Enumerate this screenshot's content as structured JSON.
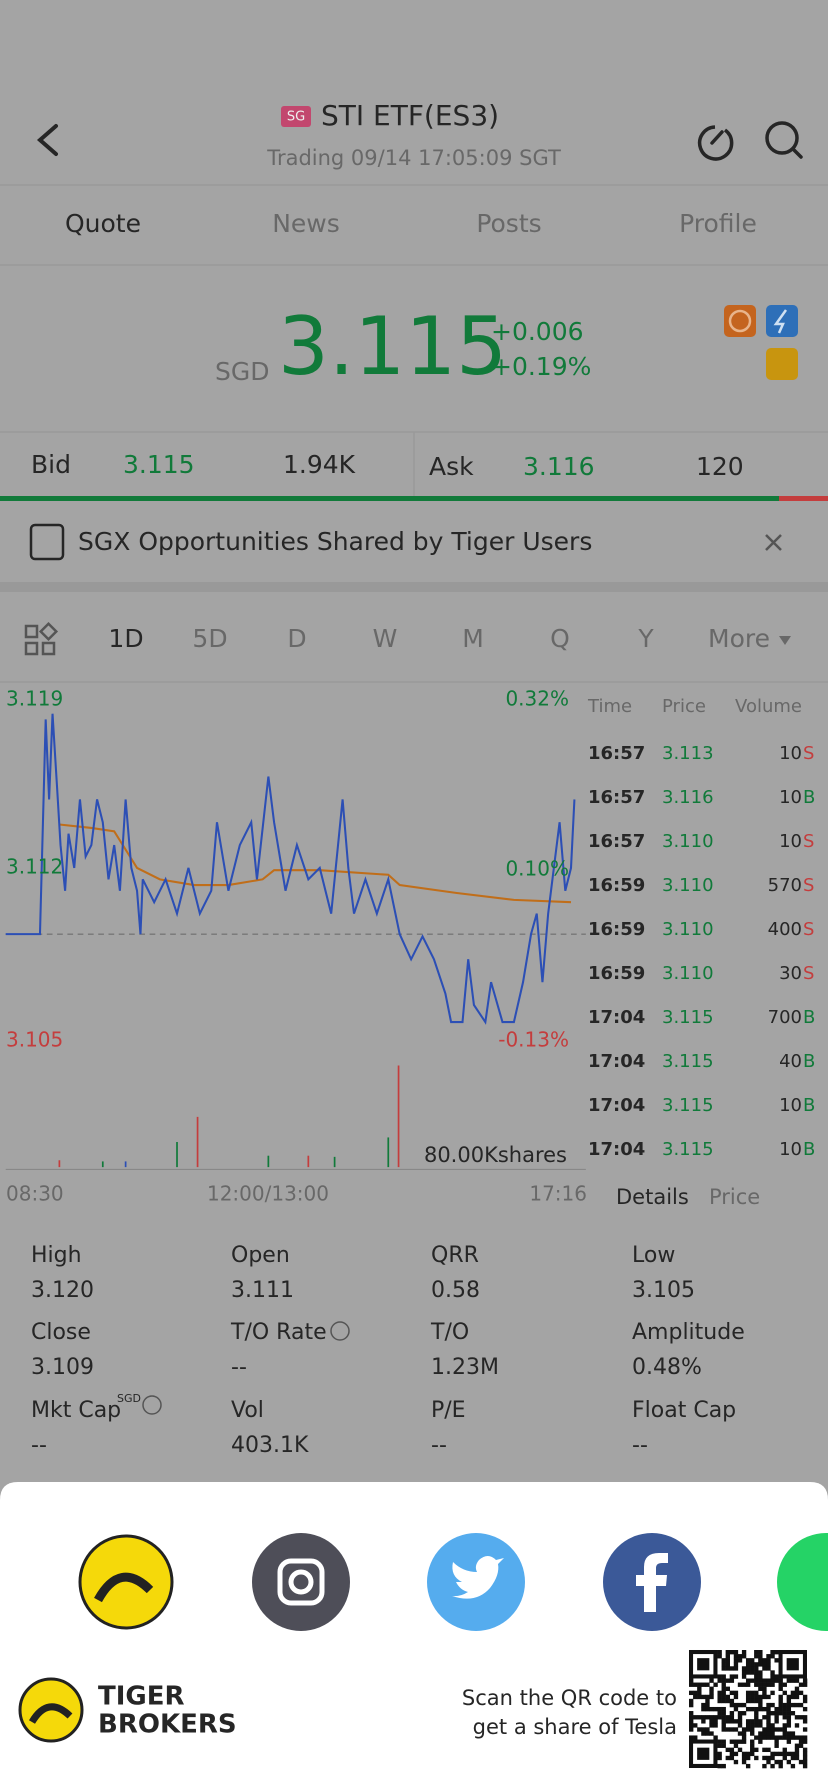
{
  "header": {
    "badge": "SG",
    "title": "STI ETF(ES3)",
    "subtitle": "Trading 09/14 17:05:09 SGT"
  },
  "tabs": [
    "Quote",
    "News",
    "Posts",
    "Profile"
  ],
  "quote": {
    "currency": "SGD",
    "price": "3.115",
    "change": "+0.006",
    "change_pct": "+0.19%"
  },
  "bid_ask": {
    "bid_label": "Bid",
    "bid_price": "3.115",
    "bid_size": "1.94K",
    "ask_label": "Ask",
    "ask_price": "3.116",
    "ask_size": "120"
  },
  "banner": {
    "text": "SGX Opportunities Shared by Tiger Users"
  },
  "periods": [
    "1D",
    "5D",
    "D",
    "W",
    "M",
    "Q",
    "Y",
    "More"
  ],
  "chart": {
    "price_labels": [
      "3.119",
      "3.112",
      "3.105"
    ],
    "pct_labels": [
      "0.32%",
      "0.10%",
      "-0.13%"
    ],
    "volume_label": "80.00Kshares",
    "time_labels": [
      "08:30",
      "12:00/13:00",
      "17:16"
    ]
  },
  "trades": {
    "columns": [
      "Time",
      "Price",
      "Volume"
    ],
    "rows": [
      [
        "16:57",
        "3.113",
        "10",
        "S"
      ],
      [
        "16:57",
        "3.116",
        "10",
        "B"
      ],
      [
        "16:57",
        "3.110",
        "10",
        "S"
      ],
      [
        "16:59",
        "3.110",
        "570",
        "S"
      ],
      [
        "16:59",
        "3.110",
        "400",
        "S"
      ],
      [
        "16:59",
        "3.110",
        "30",
        "S"
      ],
      [
        "17:04",
        "3.115",
        "700",
        "B"
      ],
      [
        "17:04",
        "3.115",
        "40",
        "B"
      ],
      [
        "17:04",
        "3.115",
        "10",
        "B"
      ],
      [
        "17:04",
        "3.115",
        "10",
        "B"
      ]
    ]
  },
  "detail_tabs": [
    "Details",
    "Price"
  ],
  "stats": [
    {
      "label": "High",
      "value": "3.120"
    },
    {
      "label": "Open",
      "value": "3.111"
    },
    {
      "label": "QRR",
      "value": "0.58"
    },
    {
      "label": "Low",
      "value": "3.105"
    },
    {
      "label": "Close",
      "value": "3.109"
    },
    {
      "label": "T/O Rate",
      "value": "--"
    },
    {
      "label": "T/O",
      "value": "1.23M"
    },
    {
      "label": "Amplitude",
      "value": "0.48%"
    },
    {
      "label": "Mkt Cap",
      "unit": "SGD",
      "value": "--"
    },
    {
      "label": "Vol",
      "value": "403.1K"
    },
    {
      "label": "P/E",
      "value": "--"
    },
    {
      "label": "Float Cap",
      "value": "--"
    }
  ],
  "footer": {
    "brand": [
      "TIGER",
      "BROKERS"
    ],
    "qr_text": [
      "Scan the QR code to",
      "get a share of Tesla"
    ]
  }
}
